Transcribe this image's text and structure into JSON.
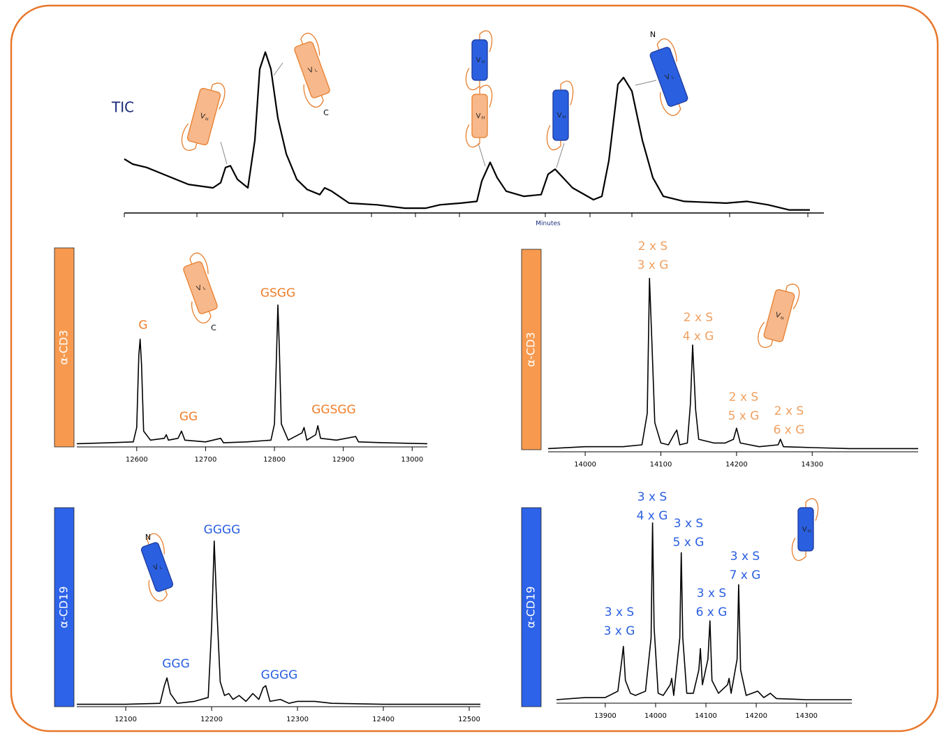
{
  "chart_data": [
    {
      "type": "line",
      "title": "TIC",
      "x_label": "Minutes",
      "color": "#000000",
      "xlim": [
        0,
        1002
      ],
      "ylim": [
        0,
        100
      ],
      "xticks": [
        0,
        104,
        227,
        354,
        417,
        480,
        603,
        667,
        727,
        867,
        979
      ],
      "x": [
        0,
        12,
        32,
        62,
        92,
        127,
        138,
        145,
        152,
        162,
        177,
        187,
        194,
        202,
        210,
        220,
        232,
        247,
        262,
        280,
        287,
        297,
        322,
        362,
        402,
        432,
        452,
        482,
        505,
        512,
        524,
        534,
        547,
        572,
        597,
        607,
        617,
        642,
        672,
        684,
        694,
        707,
        715,
        727,
        742,
        757,
        772,
        802,
        862,
        892,
        922,
        952,
        982
      ],
      "values": [
        31,
        28,
        26,
        21,
        16,
        14,
        17,
        26,
        27,
        19,
        14,
        42,
        84,
        94,
        84,
        55,
        34,
        19,
        13,
        10,
        14,
        12,
        5,
        4,
        2,
        2,
        4,
        5,
        6,
        18,
        29,
        20,
        12,
        9,
        10,
        22,
        25,
        14,
        7,
        9,
        30,
        75,
        79,
        71,
        42,
        20,
        9,
        6,
        5,
        6,
        4,
        1,
        1
      ],
      "icons": [
        {
          "main": "V",
          "sub": "H",
          "color": "#f7b88b"
        },
        {
          "main": "V",
          "sub": "L",
          "end": "C",
          "color": "#f7b88b"
        },
        {
          "main": "V",
          "sub": "H",
          "color": "#2a5fe0"
        },
        {
          "main": "V",
          "sub": "H",
          "color": "#f7b88b"
        },
        {
          "main": "V",
          "sub": "H",
          "color": "#2a5fe0"
        },
        {
          "main": "V",
          "sub": "L",
          "end": "N",
          "color": "#2a5fe0"
        }
      ]
    },
    {
      "type": "line",
      "panel_label": "α-CD3",
      "label_color": "#f79a4f",
      "annotation_color": "#f07f2a",
      "color": "#000000",
      "xlim": [
        12513,
        13022
      ],
      "ylim": [
        0,
        100
      ],
      "xticks": [
        12600,
        12700,
        12800,
        12900,
        13000
      ],
      "x": [
        12513,
        12560,
        12595,
        12600,
        12603,
        12605,
        12607,
        12610,
        12620,
        12640,
        12643,
        12646,
        12660,
        12665,
        12670,
        12700,
        12722,
        12726,
        12760,
        12795,
        12800,
        12803,
        12805,
        12807,
        12810,
        12820,
        12840,
        12843,
        12847,
        12860,
        12863,
        12867,
        12890,
        12918,
        12922,
        12960,
        13022
      ],
      "values": [
        1,
        1.5,
        2,
        10,
        50,
        59,
        45,
        8,
        3,
        4,
        6,
        3,
        4,
        8,
        3,
        2,
        4,
        1.5,
        2,
        3,
        12,
        50,
        78,
        55,
        12,
        3,
        7,
        10,
        3,
        6,
        11,
        4,
        3,
        5,
        2,
        1.5,
        1
      ],
      "annotations": [
        [
          "G"
        ],
        [
          "GG"
        ],
        [
          "GSGG"
        ],
        [
          "GGSGG"
        ]
      ],
      "icons": [
        {
          "main": "V",
          "sub": "L",
          "end": "C",
          "color": "#f7b88b"
        }
      ]
    },
    {
      "type": "line",
      "panel_label": "α-CD3",
      "label_color": "#f79a4f",
      "annotation_color": "#f0a060",
      "color": "#000000",
      "xlim": [
        13951,
        14440
      ],
      "ylim": [
        0,
        100
      ],
      "xticks": [
        14000,
        14100,
        14200,
        14300
      ],
      "x": [
        13951,
        14000,
        14050,
        14075,
        14082,
        14085,
        14088,
        14092,
        14100,
        14110,
        14118,
        14121,
        14125,
        14135,
        14139,
        14142,
        14146,
        14150,
        14170,
        14185,
        14196,
        14200,
        14205,
        14230,
        14255,
        14258,
        14262,
        14300,
        14350,
        14440
      ],
      "values": [
        1,
        2,
        2,
        3,
        20,
        93,
        60,
        15,
        4,
        3,
        9,
        11,
        3,
        4,
        25,
        57,
        22,
        6,
        4,
        4,
        6,
        12,
        4,
        2,
        3,
        6,
        2,
        1.5,
        1,
        1
      ],
      "annotations": [
        [
          "2 x S",
          "3 x G"
        ],
        [
          "2 x S",
          "4 x G"
        ],
        [
          "2 x S",
          "5 x G"
        ],
        [
          "2 x S",
          "6 x G"
        ]
      ],
      "icons": [
        {
          "main": "V",
          "sub": "H",
          "color": "#f7b88b"
        }
      ]
    },
    {
      "type": "line",
      "panel_label": "α-CD19",
      "label_color": "#2d63e8",
      "annotation_color": "#2a5fe0",
      "color": "#000000",
      "xlim": [
        12043,
        12513
      ],
      "ylim": [
        0,
        100
      ],
      "xticks": [
        12100,
        12200,
        12300,
        12400,
        12500
      ],
      "x": [
        12043,
        12100,
        12140,
        12145,
        12148,
        12152,
        12160,
        12180,
        12196,
        12200,
        12203,
        12206,
        12210,
        12215,
        12220,
        12225,
        12232,
        12240,
        12248,
        12255,
        12260,
        12263,
        12268,
        12280,
        12290,
        12300,
        12320,
        12340,
        12400,
        12513
      ],
      "values": [
        0.5,
        0.5,
        1,
        10,
        14,
        6,
        1,
        2,
        4,
        40,
        84,
        50,
        12,
        5,
        6,
        3,
        5,
        2,
        6,
        3,
        9,
        10,
        2,
        3,
        1,
        2,
        2,
        1,
        0.5,
        0.5
      ],
      "annotations": [
        [
          "GGGG"
        ],
        [
          "GGG"
        ],
        [
          "GGGG"
        ]
      ],
      "icons": [
        {
          "main": "V",
          "sub": "L",
          "end": "N",
          "color": "#2a5fe0"
        }
      ]
    },
    {
      "type": "line",
      "panel_label": "α-CD19",
      "label_color": "#2d63e8",
      "annotation_color": "#2a5fe0",
      "color": "#000000",
      "xlim": [
        13803,
        14390
      ],
      "ylim": [
        0,
        100
      ],
      "xticks": [
        13900,
        14000,
        14100,
        14200,
        14300
      ],
      "x": [
        13803,
        13860,
        13900,
        13925,
        13933,
        13936,
        13940,
        13950,
        13960,
        13980,
        13991,
        13994,
        13997,
        14005,
        14015,
        14029,
        14032,
        14036,
        14048,
        14051,
        14054,
        14062,
        14075,
        14086,
        14089,
        14093,
        14104,
        14108,
        14112,
        14125,
        14143,
        14146,
        14150,
        14162,
        14165,
        14169,
        14180,
        14203,
        14215,
        14228,
        14240,
        14300,
        14390
      ],
      "values": [
        1,
        2,
        2,
        5,
        20,
        26,
        10,
        4,
        3,
        5,
        30,
        84,
        35,
        4,
        3,
        8,
        11,
        3,
        30,
        70,
        30,
        4,
        4,
        15,
        25,
        8,
        20,
        38,
        10,
        4,
        8,
        11,
        4,
        20,
        55,
        15,
        3,
        5,
        2,
        4,
        1.5,
        1,
        1
      ],
      "annotations": [
        [
          "3 x S",
          "4 x G"
        ],
        [
          "3 x S",
          "5 x G"
        ],
        [
          "3 x S",
          "6 x G"
        ],
        [
          "3 x S",
          "7 x G"
        ],
        [
          "3 x S",
          "3 x G"
        ]
      ],
      "icons": [
        {
          "main": "V",
          "sub": "H",
          "color": "#2a5fe0"
        }
      ]
    }
  ]
}
